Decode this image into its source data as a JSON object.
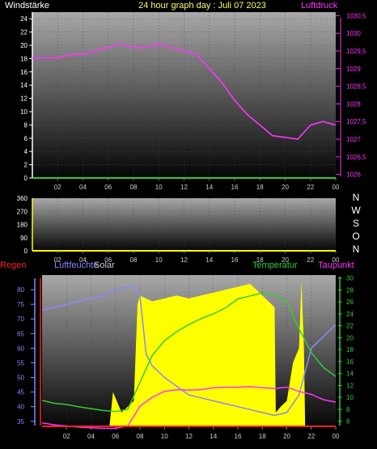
{
  "header": {
    "left_label": "Windstärke",
    "title": "24 hour graph day : Juli 07 2023",
    "right_label": "Luftdruck"
  },
  "colors": {
    "title": "#ffff66",
    "wind": "#ffffff",
    "pressure": "#ff33ff",
    "direction": "#ffff00",
    "rain": "#ff2222",
    "humidity": "#8888ff",
    "solar": "#ffff00",
    "temperature": "#33cc33",
    "dewpoint": "#ff33ff",
    "baseline": "#33cc33"
  },
  "wind_direction_labels": [
    "N",
    "W",
    "S",
    "O",
    "N"
  ],
  "legend": {
    "rain": "Regen",
    "humidity": "Luftfeuchte",
    "solar": "Solar",
    "temperature": "Temperatur",
    "dewpoint": "Taupunkt"
  },
  "chart_data": [
    {
      "type": "line",
      "x_ticks": [
        "02",
        "04",
        "06",
        "08",
        "10",
        "12",
        "14",
        "16",
        "18",
        "20",
        "22",
        "00"
      ],
      "xlim": [
        0,
        24
      ],
      "left_axis": {
        "label": "Windstärke",
        "ticks": [
          0,
          2,
          4,
          6,
          8,
          10,
          12,
          14,
          16,
          18,
          20,
          22,
          24
        ],
        "ylim": [
          0,
          25
        ]
      },
      "right_axis": {
        "label": "Luftdruck",
        "ticks": [
          "1026",
          "1026,5",
          "1027",
          "1027,5",
          "1028",
          "1028,5",
          "1029",
          "1029,5",
          "1030",
          "1030,5"
        ],
        "ylim": [
          1025.9,
          1030.6
        ]
      },
      "series": [
        {
          "name": "Windstärke",
          "axis": "left",
          "x": [
            0,
            24
          ],
          "y": [
            0.2,
            0.2
          ]
        },
        {
          "name": "Luftdruck",
          "axis": "right",
          "x": [
            0,
            1,
            2,
            3,
            4,
            5,
            6,
            7,
            8,
            9,
            10,
            11,
            12,
            13,
            14,
            15,
            16,
            17,
            18,
            19,
            20,
            21,
            22,
            23,
            24
          ],
          "y": [
            1029.3,
            1029.3,
            1029.3,
            1029.4,
            1029.4,
            1029.5,
            1029.6,
            1029.7,
            1029.6,
            1029.6,
            1029.7,
            1029.6,
            1029.5,
            1029.4,
            1029.0,
            1028.6,
            1028.1,
            1027.7,
            1027.4,
            1027.1,
            1027.05,
            1027.0,
            1027.4,
            1027.5,
            1027.4
          ]
        }
      ]
    },
    {
      "type": "line",
      "x_ticks": [
        "02",
        "04",
        "06",
        "08",
        "10",
        "12",
        "14",
        "16",
        "18",
        "20",
        "22",
        "00"
      ],
      "xlim": [
        0,
        24
      ],
      "left_axis": {
        "ticks": [
          0,
          90,
          180,
          270,
          360
        ],
        "ylim": [
          0,
          360
        ]
      },
      "right_axis": {
        "labels": [
          "N",
          "W",
          "S",
          "O",
          "N"
        ]
      },
      "series": [
        {
          "name": "Windrichtung",
          "axis": "left",
          "x": [
            0,
            24
          ],
          "y": [
            0,
            0
          ]
        }
      ]
    },
    {
      "type": "area",
      "x_ticks": [
        "02",
        "04",
        "06",
        "08",
        "10",
        "12",
        "14",
        "16",
        "18",
        "20",
        "22",
        "00"
      ],
      "xlim": [
        0,
        24
      ],
      "left_axis": {
        "label": "Luftfeuchte",
        "ticks": [
          35,
          40,
          45,
          50,
          55,
          60,
          65,
          70,
          75,
          80
        ],
        "ylim": [
          33,
          85
        ]
      },
      "right_axis": {
        "label": "Temperatur",
        "ticks": [
          6,
          8,
          10,
          12,
          14,
          16,
          18,
          20,
          22,
          24,
          26,
          28,
          30
        ],
        "ylim": [
          5,
          30.5
        ]
      },
      "series": [
        {
          "name": "Solar",
          "kind": "area",
          "axis": "left",
          "x": [
            0,
            5.5,
            5.8,
            6.5,
            7.5,
            7.8,
            8.0,
            9,
            10,
            11,
            12,
            13,
            14,
            15,
            16,
            17,
            17.5,
            18,
            18.5,
            19,
            19.1,
            19.5,
            20,
            20.5,
            21,
            21.2,
            21.4,
            21.5,
            24
          ],
          "y": [
            33,
            33,
            45,
            38,
            42,
            75,
            78,
            76,
            77,
            78,
            77,
            78,
            79,
            80,
            81,
            82,
            80,
            78,
            76,
            74,
            38,
            40,
            42,
            55,
            60,
            83,
            60,
            33,
            33
          ]
        },
        {
          "name": "Luftfeuchte",
          "axis": "left",
          "x": [
            0,
            1,
            2,
            3,
            4,
            5,
            6,
            7,
            7.5,
            8,
            8.5,
            9,
            10,
            11,
            12,
            13,
            14,
            15,
            16,
            17,
            18,
            19,
            20,
            21,
            21.5,
            22,
            23,
            24
          ],
          "y": [
            73,
            74,
            75,
            76,
            77,
            78,
            80,
            81,
            81,
            78,
            58,
            54,
            50,
            47,
            44,
            43,
            42,
            41,
            40,
            39,
            38,
            37,
            38,
            44,
            52,
            60,
            64,
            68
          ]
        },
        {
          "name": "Temperatur",
          "axis": "right",
          "x": [
            0,
            1,
            2,
            3,
            4,
            5,
            6,
            7,
            8,
            9,
            10,
            11,
            12,
            13,
            14,
            15,
            16,
            17,
            18,
            19,
            20,
            21,
            22,
            23,
            24
          ],
          "y": [
            9.5,
            9.0,
            8.8,
            8.4,
            8.1,
            7.8,
            7.6,
            8.0,
            12.5,
            17.0,
            19.5,
            21.0,
            22.2,
            23.2,
            24.0,
            25.0,
            26.5,
            27.0,
            27.5,
            27.2,
            26.0,
            21.5,
            17.5,
            15.0,
            13.5
          ]
        },
        {
          "name": "Taupunkt",
          "axis": "right",
          "x": [
            0,
            1,
            2,
            3,
            4,
            5,
            6,
            7,
            8,
            9,
            10,
            11,
            12,
            13,
            14,
            15,
            16,
            17,
            18,
            19,
            20,
            21,
            22,
            23,
            24
          ],
          "y": [
            5.7,
            5.4,
            5.2,
            5.0,
            4.9,
            4.8,
            4.8,
            5.2,
            8.5,
            10.0,
            11.0,
            11.3,
            11.2,
            11.3,
            11.6,
            11.7,
            11.7,
            11.8,
            11.6,
            11.5,
            11.7,
            11.0,
            10.5,
            9.6,
            9.2
          ]
        },
        {
          "name": "Regen",
          "axis": "left",
          "x": [
            0,
            24
          ],
          "y": [
            33.3,
            33.3
          ]
        }
      ]
    }
  ]
}
